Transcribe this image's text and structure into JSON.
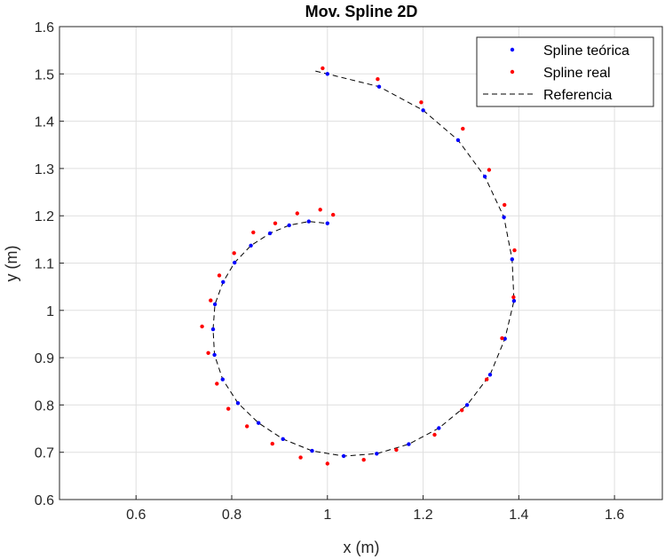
{
  "chart_data": {
    "type": "scatter",
    "title": "Mov. Spline 2D",
    "xlabel": "x (m)",
    "ylabel": "y (m)",
    "xlim": [
      0.44,
      1.7
    ],
    "ylim": [
      0.6,
      1.6
    ],
    "xticks": [
      0.6,
      0.8,
      1,
      1.2,
      1.4,
      1.6
    ],
    "yticks": [
      0.6,
      0.7,
      0.8,
      0.9,
      1,
      1.1,
      1.2,
      1.3,
      1.4,
      1.5,
      1.6
    ],
    "xtick_labels": [
      "0.6",
      "0.8",
      "1",
      "1.2",
      "1.4",
      "1.6"
    ],
    "ytick_labels": [
      "0.6",
      "0.7",
      "0.8",
      "0.9",
      "1",
      "1.1",
      "1.2",
      "1.3",
      "1.4",
      "1.5",
      "1.6"
    ],
    "grid": true,
    "legend_position": "top-right",
    "series": [
      {
        "name": "Spline teórica",
        "style": "points",
        "color": "#0000ff",
        "points": [
          [
            1.0,
            1.5
          ],
          [
            1.108,
            1.473
          ],
          [
            1.2,
            1.423
          ],
          [
            1.273,
            1.36
          ],
          [
            1.329,
            1.283
          ],
          [
            1.369,
            1.197
          ],
          [
            1.386,
            1.108
          ],
          [
            1.39,
            1.02
          ],
          [
            1.371,
            0.94
          ],
          [
            1.34,
            0.864
          ],
          [
            1.292,
            0.8
          ],
          [
            1.233,
            0.751
          ],
          [
            1.17,
            0.717
          ],
          [
            1.103,
            0.697
          ],
          [
            1.034,
            0.692
          ],
          [
            0.968,
            0.703
          ],
          [
            0.907,
            0.728
          ],
          [
            0.856,
            0.762
          ],
          [
            0.813,
            0.804
          ],
          [
            0.781,
            0.854
          ],
          [
            0.764,
            0.906
          ],
          [
            0.761,
            0.96
          ],
          [
            0.765,
            1.013
          ],
          [
            0.782,
            1.06
          ],
          [
            0.806,
            1.101
          ],
          [
            0.84,
            1.137
          ],
          [
            0.88,
            1.163
          ],
          [
            0.92,
            1.18
          ],
          [
            0.961,
            1.188
          ],
          [
            1.0,
            1.184
          ]
        ]
      },
      {
        "name": "Spline real",
        "style": "points",
        "color": "#ff0000",
        "points": [
          [
            0.99,
            1.512
          ],
          [
            1.105,
            1.489
          ],
          [
            1.196,
            1.44
          ],
          [
            1.283,
            1.384
          ],
          [
            1.338,
            1.297
          ],
          [
            1.37,
            1.223
          ],
          [
            1.391,
            1.127
          ],
          [
            1.389,
            1.028
          ],
          [
            1.365,
            0.941
          ],
          [
            1.333,
            0.854
          ],
          [
            1.281,
            0.789
          ],
          [
            1.224,
            0.737
          ],
          [
            1.144,
            0.705
          ],
          [
            1.076,
            0.684
          ],
          [
            1.0,
            0.676
          ],
          [
            0.944,
            0.689
          ],
          [
            0.885,
            0.718
          ],
          [
            0.832,
            0.755
          ],
          [
            0.793,
            0.792
          ],
          [
            0.769,
            0.845
          ],
          [
            0.751,
            0.91
          ],
          [
            0.738,
            0.966
          ],
          [
            0.756,
            1.021
          ],
          [
            0.774,
            1.074
          ],
          [
            0.805,
            1.121
          ],
          [
            0.845,
            1.165
          ],
          [
            0.891,
            1.184
          ],
          [
            0.937,
            1.205
          ],
          [
            0.985,
            1.213
          ],
          [
            1.012,
            1.202
          ]
        ]
      },
      {
        "name": "Referencia",
        "style": "dashed-line",
        "color": "#000000",
        "points": [
          [
            0.975,
            1.506
          ],
          [
            1.0,
            1.5
          ],
          [
            1.108,
            1.473
          ],
          [
            1.2,
            1.423
          ],
          [
            1.273,
            1.36
          ],
          [
            1.329,
            1.283
          ],
          [
            1.369,
            1.197
          ],
          [
            1.386,
            1.108
          ],
          [
            1.39,
            1.02
          ],
          [
            1.371,
            0.94
          ],
          [
            1.34,
            0.864
          ],
          [
            1.292,
            0.8
          ],
          [
            1.233,
            0.751
          ],
          [
            1.17,
            0.717
          ],
          [
            1.103,
            0.697
          ],
          [
            1.034,
            0.692
          ],
          [
            0.968,
            0.703
          ],
          [
            0.907,
            0.728
          ],
          [
            0.856,
            0.762
          ],
          [
            0.813,
            0.804
          ],
          [
            0.781,
            0.854
          ],
          [
            0.764,
            0.906
          ],
          [
            0.761,
            0.96
          ],
          [
            0.765,
            1.013
          ],
          [
            0.782,
            1.06
          ],
          [
            0.806,
            1.101
          ],
          [
            0.84,
            1.137
          ],
          [
            0.88,
            1.163
          ],
          [
            0.92,
            1.18
          ],
          [
            0.961,
            1.188
          ],
          [
            1.0,
            1.184
          ]
        ]
      }
    ]
  }
}
